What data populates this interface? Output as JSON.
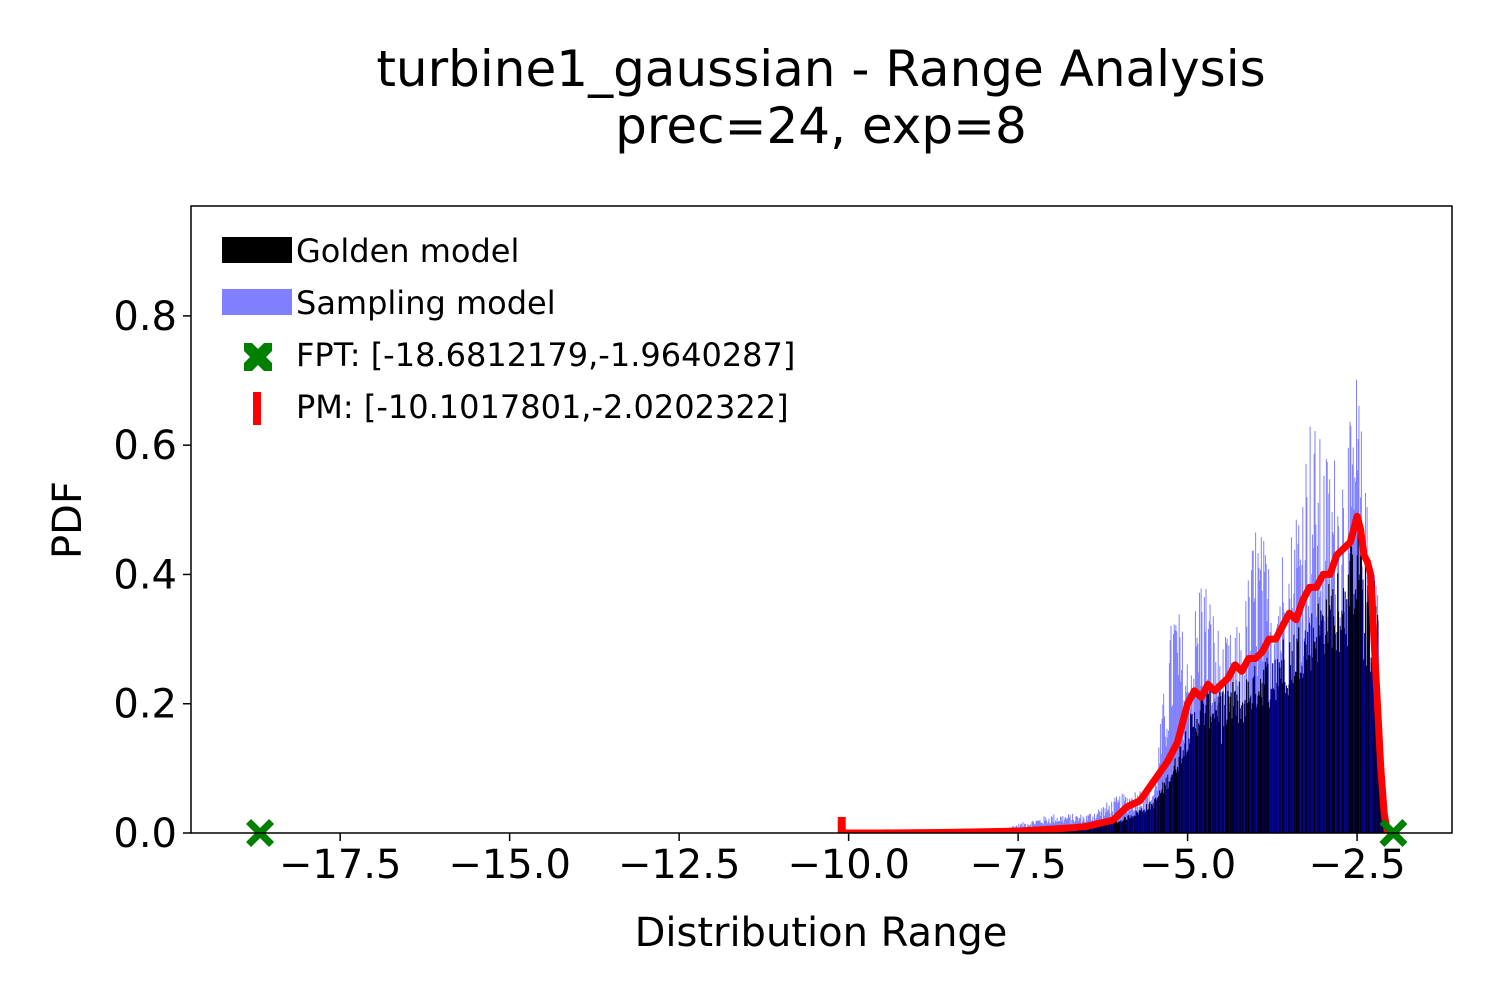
{
  "chart_data": {
    "type": "bar",
    "title": "turbine1_gaussian - Range Analysis",
    "subtitle": "prec=24, exp=8",
    "xlabel": "Distribution Range",
    "ylabel": "PDF",
    "xlim": [
      -19.7,
      -1.1
    ],
    "ylim": [
      0.0,
      0.97
    ],
    "grid": false,
    "legend_position": "top-left",
    "xticks": [
      -17.5,
      -15.0,
      -12.5,
      -10.0,
      -7.5,
      -5.0,
      -2.5
    ],
    "xtick_labels": [
      "−17.5",
      "−15.0",
      "−12.5",
      "−10.0",
      "−7.5",
      "−5.0",
      "−2.5"
    ],
    "yticks": [
      0.0,
      0.2,
      0.4,
      0.6,
      0.8
    ],
    "ytick_labels": [
      "0.0",
      "0.2",
      "0.4",
      "0.6",
      "0.8"
    ],
    "colors": {
      "golden": "#000000",
      "sampling": "#8080ff",
      "overlap": "#000080",
      "pm": "#ff0000",
      "fpt": "#008000"
    },
    "series": [
      {
        "name": "Golden model",
        "kind": "histogram",
        "x": [
          -7.5,
          -7.0,
          -6.5,
          -6.0,
          -5.5,
          -5.2,
          -5.0,
          -4.8,
          -4.5,
          -4.2,
          -4.0,
          -3.8,
          -3.5,
          -3.2,
          -3.0,
          -2.8,
          -2.6,
          -2.5,
          -2.4,
          -2.3,
          -2.2,
          -2.15,
          -2.1
        ],
        "values": [
          0.0,
          0.004,
          0.01,
          0.02,
          0.05,
          0.11,
          0.17,
          0.21,
          0.22,
          0.23,
          0.25,
          0.27,
          0.3,
          0.33,
          0.36,
          0.39,
          0.43,
          0.46,
          0.47,
          0.44,
          0.38,
          0.1,
          0.0
        ]
      },
      {
        "name": "Sampling model",
        "kind": "histogram",
        "x": [
          -8.0,
          -7.0,
          -6.5,
          -6.0,
          -5.5,
          -5.2,
          -5.0,
          -4.8,
          -4.5,
          -4.2,
          -4.0,
          -3.8,
          -3.5,
          -3.2,
          -3.0,
          -2.8,
          -2.6,
          -2.5,
          -2.4,
          -2.3,
          -2.2,
          -2.15,
          -2.1
        ],
        "values": [
          0.0,
          0.03,
          0.03,
          0.06,
          0.08,
          0.38,
          0.28,
          0.43,
          0.3,
          0.33,
          0.5,
          0.43,
          0.47,
          0.66,
          0.6,
          0.6,
          0.64,
          0.74,
          0.55,
          0.48,
          0.46,
          0.1,
          0.0
        ]
      },
      {
        "name": "PM: [-10.1017801,-2.0202322]",
        "kind": "line",
        "x": [
          -10.1,
          -9.5,
          -8.5,
          -8.0,
          -7.5,
          -7.0,
          -6.7,
          -6.5,
          -6.3,
          -6.1,
          -5.9,
          -5.7,
          -5.5,
          -5.3,
          -5.15,
          -5.0,
          -4.9,
          -4.8,
          -4.7,
          -4.6,
          -4.5,
          -4.4,
          -4.3,
          -4.2,
          -4.1,
          -4.0,
          -3.9,
          -3.8,
          -3.7,
          -3.6,
          -3.5,
          -3.4,
          -3.3,
          -3.2,
          -3.1,
          -3.0,
          -2.9,
          -2.8,
          -2.7,
          -2.6,
          -2.5,
          -2.45,
          -2.4,
          -2.35,
          -2.3,
          -2.25,
          -2.2,
          -2.15,
          -2.1,
          -2.05,
          -2.02
        ],
        "values": [
          0.0,
          0.0,
          0.001,
          0.002,
          0.003,
          0.006,
          0.008,
          0.01,
          0.015,
          0.02,
          0.04,
          0.05,
          0.08,
          0.11,
          0.14,
          0.2,
          0.22,
          0.21,
          0.23,
          0.22,
          0.23,
          0.24,
          0.26,
          0.25,
          0.27,
          0.27,
          0.28,
          0.3,
          0.3,
          0.32,
          0.34,
          0.33,
          0.36,
          0.38,
          0.38,
          0.4,
          0.4,
          0.43,
          0.44,
          0.45,
          0.49,
          0.47,
          0.43,
          0.42,
          0.4,
          0.3,
          0.2,
          0.1,
          0.03,
          0.0,
          0.0
        ]
      },
      {
        "name": "FPT: [-18.6812179,-1.9640287]",
        "kind": "markers",
        "x": [
          -18.6812179,
          -1.9640287
        ],
        "values": [
          0.0,
          0.0
        ]
      }
    ],
    "annotations": [
      {
        "label": "PM lower bound marker",
        "x": -10.1017801,
        "y": 0.0
      }
    ]
  },
  "legend": {
    "items": [
      {
        "label": "Golden model"
      },
      {
        "label": "Sampling model"
      },
      {
        "label": "FPT: [-18.6812179,-1.9640287]"
      },
      {
        "label": "PM: [-10.1017801,-2.0202322]"
      }
    ]
  }
}
